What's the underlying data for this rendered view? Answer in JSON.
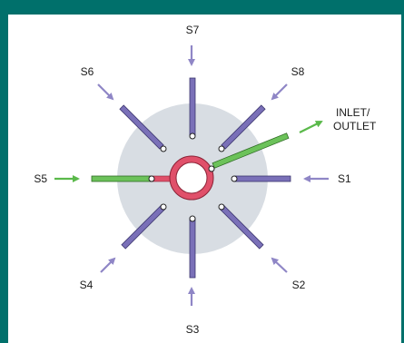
{
  "diagram": {
    "ports": {
      "s1": "S1",
      "s2": "S2",
      "s3": "S3",
      "s4": "S4",
      "s5": "S5",
      "s6": "S6",
      "s7": "S7",
      "s8": "S8"
    },
    "inlet": {
      "line1": "INLET/",
      "line2": "OUTLET"
    },
    "colors": {
      "frame": "#00706b",
      "disc": "#d8dde3",
      "channel": "#7a70b8",
      "active_channel": "#6cc25a",
      "ring": "#e0506a",
      "arrow_inactive": "#8f86c6",
      "arrow_active": "#5ab94a"
    },
    "active_port": "S5"
  }
}
